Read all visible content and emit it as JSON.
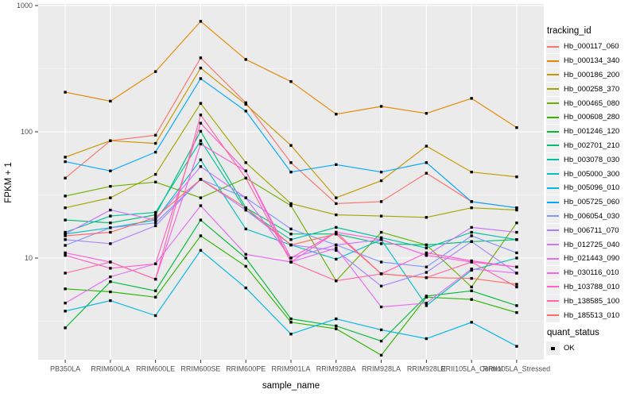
{
  "chart_data": {
    "type": "line",
    "title": "",
    "xlabel": "sample_name",
    "ylabel": "FPKM + 1",
    "y_scale": "log10",
    "y_ticks": [
      10,
      100,
      1000
    ],
    "y_minor_ticks": [
      3.162,
      31.62,
      316.2
    ],
    "ylim_log10": [
      0.19,
      3.01
    ],
    "grid": true,
    "panel_bg": "#EBEBEB",
    "grid_color": "#FFFFFF",
    "tick_label_color": "#4D4D4D",
    "point_color": "#000000",
    "point_shape": "small-black-square",
    "legend_title": "tracking_id",
    "legend_position": "right",
    "quant_legend": {
      "title": "quant_status",
      "items": [
        {
          "label": "OK",
          "marker": "black-square"
        }
      ]
    },
    "categories": [
      "PB350LA",
      "RRIM600LA",
      "RRIM600LE",
      "RRIM600SE",
      "RRIM600PE",
      "RRIM901LA",
      "RRIM928BA",
      "RRIM928LA",
      "RRIM928LE",
      "RRII105LA_Control",
      "RRII105LA_Stressed"
    ],
    "series": [
      {
        "name": "Hb_000117_060",
        "color": "#F8766D",
        "values": [
          43,
          85,
          94,
          385,
          170,
          57,
          27,
          28,
          47,
          28,
          25
        ]
      },
      {
        "name": "Hb_000134_340",
        "color": "#E58700",
        "values": [
          206,
          175,
          300,
          750,
          374,
          250,
          138,
          159,
          140,
          184,
          108
        ]
      },
      {
        "name": "Hb_000186_200",
        "color": "#C99800",
        "values": [
          63,
          85,
          81,
          320,
          165,
          78,
          30,
          41,
          77,
          48,
          44
        ]
      },
      {
        "name": "Hb_000258_370",
        "color": "#A3A500",
        "values": [
          25,
          30,
          46,
          168,
          57,
          27,
          22,
          21.5,
          21,
          25,
          24
        ]
      },
      {
        "name": "Hb_000465_080",
        "color": "#6BB100",
        "values": [
          31,
          37,
          40,
          30,
          43,
          26,
          6.6,
          16,
          12.7,
          5.9,
          19
        ]
      },
      {
        "name": "Hb_000608_280",
        "color": "#2FB600",
        "values": [
          5.7,
          5.4,
          4.9,
          15,
          8.6,
          3.1,
          2.75,
          1.7,
          4.9,
          4.7,
          3.7
        ]
      },
      {
        "name": "Hb_001246_120",
        "color": "#00BA38",
        "values": [
          2.8,
          6.5,
          5.5,
          20,
          10,
          3.3,
          2.9,
          2.2,
          5.0,
          5.5,
          4.2
        ]
      },
      {
        "name": "Hb_002701_210",
        "color": "#00BF74",
        "values": [
          20,
          19,
          22,
          101,
          25,
          15.5,
          15.5,
          13,
          12.7,
          13.5,
          14
        ]
      },
      {
        "name": "Hb_003078_030",
        "color": "#00C1A3",
        "values": [
          16,
          21.5,
          23,
          85,
          24,
          14,
          17.5,
          14.5,
          12,
          16,
          14
        ]
      },
      {
        "name": "Hb_005000_300",
        "color": "#00BFC4",
        "values": [
          15.5,
          17.4,
          20,
          60,
          17,
          12.7,
          9.8,
          14,
          4.2,
          8,
          10
        ]
      },
      {
        "name": "Hb_005096_010",
        "color": "#00B8E5",
        "values": [
          3.8,
          4.6,
          3.5,
          11.5,
          5.8,
          2.5,
          3.3,
          2.7,
          2.3,
          3.1,
          2.0
        ]
      },
      {
        "name": "Hb_005725_060",
        "color": "#00A9FF",
        "values": [
          58,
          49,
          69,
          264,
          146,
          48,
          55,
          48,
          57,
          28,
          25
        ]
      },
      {
        "name": "Hb_006054_030",
        "color": "#7F96FF",
        "values": [
          12.6,
          17.4,
          19,
          42,
          30,
          17,
          12.7,
          9.3,
          8.5,
          15,
          11
        ]
      },
      {
        "name": "Hb_006711_070",
        "color": "#A983FF",
        "values": [
          14,
          13,
          18,
          42,
          24,
          12.7,
          11.5,
          6.0,
          7.7,
          13.5,
          7.6
        ]
      },
      {
        "name": "Hb_012725_040",
        "color": "#CF74FF",
        "values": [
          15.5,
          24,
          20,
          53,
          30,
          10,
          12.7,
          14,
          10.5,
          17.5,
          16
        ]
      },
      {
        "name": "Hb_021443_090",
        "color": "#E76BF3",
        "values": [
          4.4,
          7.1,
          9,
          26,
          10.7,
          9.3,
          12,
          4.1,
          4.4,
          8.2,
          7.6
        ]
      },
      {
        "name": "Hb_030116_010",
        "color": "#F863DF",
        "values": [
          11,
          9.3,
          6.8,
          80,
          49,
          9.3,
          16,
          14,
          10.5,
          9.3,
          8.5
        ]
      },
      {
        "name": "Hb_103788_010",
        "color": "#FF61C7",
        "values": [
          10.5,
          8.3,
          9,
          117,
          49,
          10,
          16,
          7.5,
          11,
          9.5,
          8.5
        ]
      },
      {
        "name": "Hb_138585_100",
        "color": "#FF68A5",
        "values": [
          7.6,
          9.3,
          6.8,
          136,
          43,
          9.3,
          6.6,
          7.5,
          7.0,
          9.3,
          5.9
        ]
      },
      {
        "name": "Hb_185513_010",
        "color": "#FF6C67",
        "values": [
          15,
          16,
          21,
          42,
          25,
          12.7,
          15.5,
          7.5,
          7.0,
          6.9,
          6.2
        ]
      }
    ]
  }
}
